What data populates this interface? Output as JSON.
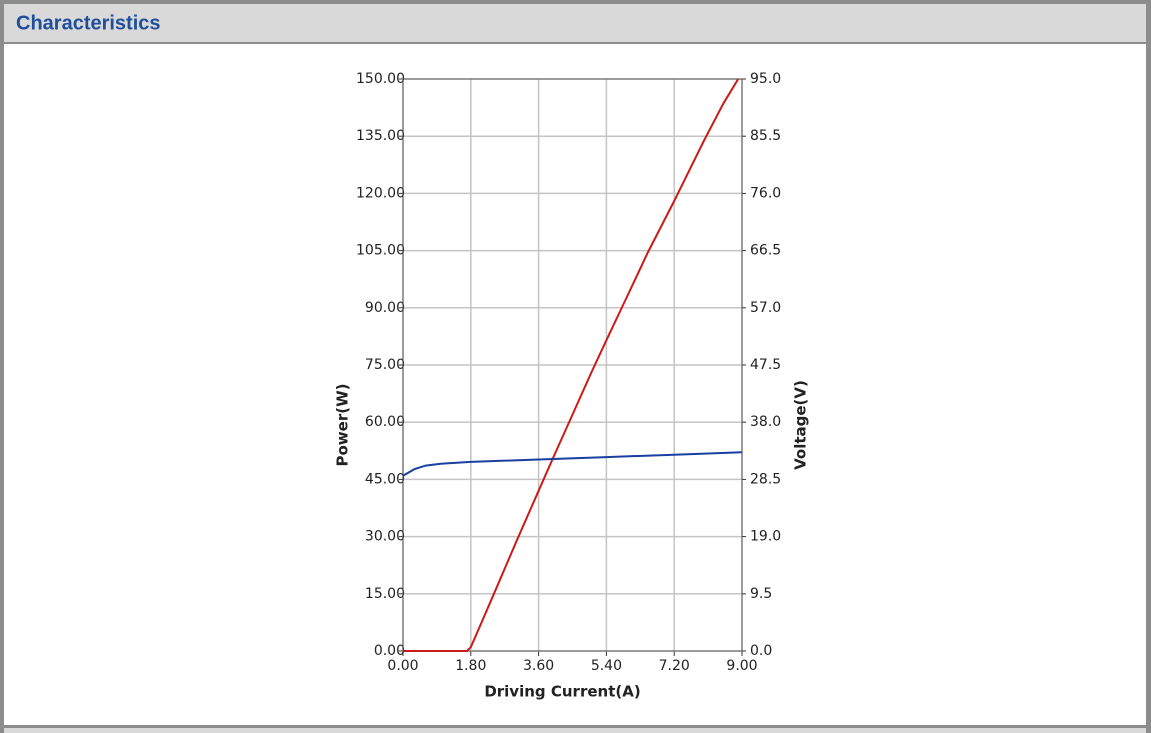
{
  "header": {
    "title": "Characteristics"
  },
  "chart_data": {
    "type": "line",
    "xlabel": "Driving Current(A)",
    "ylabel": "Power(W)",
    "y2label": "Voltage(V)",
    "xlim": [
      0,
      9
    ],
    "xticks": [
      {
        "value": 0,
        "label": "0.00"
      },
      {
        "value": 1.8,
        "label": "1.80"
      },
      {
        "value": 3.6,
        "label": "3.60"
      },
      {
        "value": 5.4,
        "label": "5.40"
      },
      {
        "value": 7.2,
        "label": "7.20"
      },
      {
        "value": 9,
        "label": "9.00"
      }
    ],
    "ylim": [
      0,
      150
    ],
    "yticks": [
      {
        "value": 0,
        "label": "0.00"
      },
      {
        "value": 15,
        "label": "15.00"
      },
      {
        "value": 30,
        "label": "30.00"
      },
      {
        "value": 45,
        "label": "45.00"
      },
      {
        "value": 60,
        "label": "60.00"
      },
      {
        "value": 75,
        "label": "75.00"
      },
      {
        "value": 90,
        "label": "90.00"
      },
      {
        "value": 105,
        "label": "105.00"
      },
      {
        "value": 120,
        "label": "120.00"
      },
      {
        "value": 135,
        "label": "135.00"
      },
      {
        "value": 150,
        "label": "150.00"
      }
    ],
    "y2lim": [
      0,
      95
    ],
    "y2ticks": [
      {
        "value": 0,
        "label": "0.0"
      },
      9.5,
      {
        "value": 19,
        "label": "19.0"
      },
      28.5,
      {
        "value": 38,
        "label": "38.0"
      },
      47.5,
      {
        "value": 57,
        "label": "57.0"
      },
      66.5,
      {
        "value": 76,
        "label": "76.0"
      },
      85.5,
      {
        "value": 95,
        "label": "95.0"
      }
    ],
    "grid": true,
    "series": [
      {
        "name": "Power",
        "color": "#cc1a1a",
        "x": [
          0,
          1.7,
          1.8,
          2.0,
          2.5,
          3.0,
          3.6,
          4.0,
          4.5,
          5.0,
          5.4,
          6.0,
          6.5,
          7.2,
          7.5,
          8.0,
          8.5,
          8.9
        ],
        "values": [
          0,
          0,
          1,
          5.5,
          17,
          28.5,
          42,
          51,
          62,
          73,
          81.5,
          94,
          104.5,
          118,
          124,
          134,
          143.5,
          150
        ]
      },
      {
        "name": "Voltage",
        "color": "#1a3fa0",
        "axis": "y2",
        "x": [
          0,
          0.3,
          0.6,
          1.0,
          1.8,
          3.6,
          5.4,
          7.2,
          9.0
        ],
        "values": [
          29.1,
          30.2,
          30.8,
          31.1,
          31.4,
          31.8,
          32.2,
          32.6,
          33.0
        ]
      }
    ]
  }
}
